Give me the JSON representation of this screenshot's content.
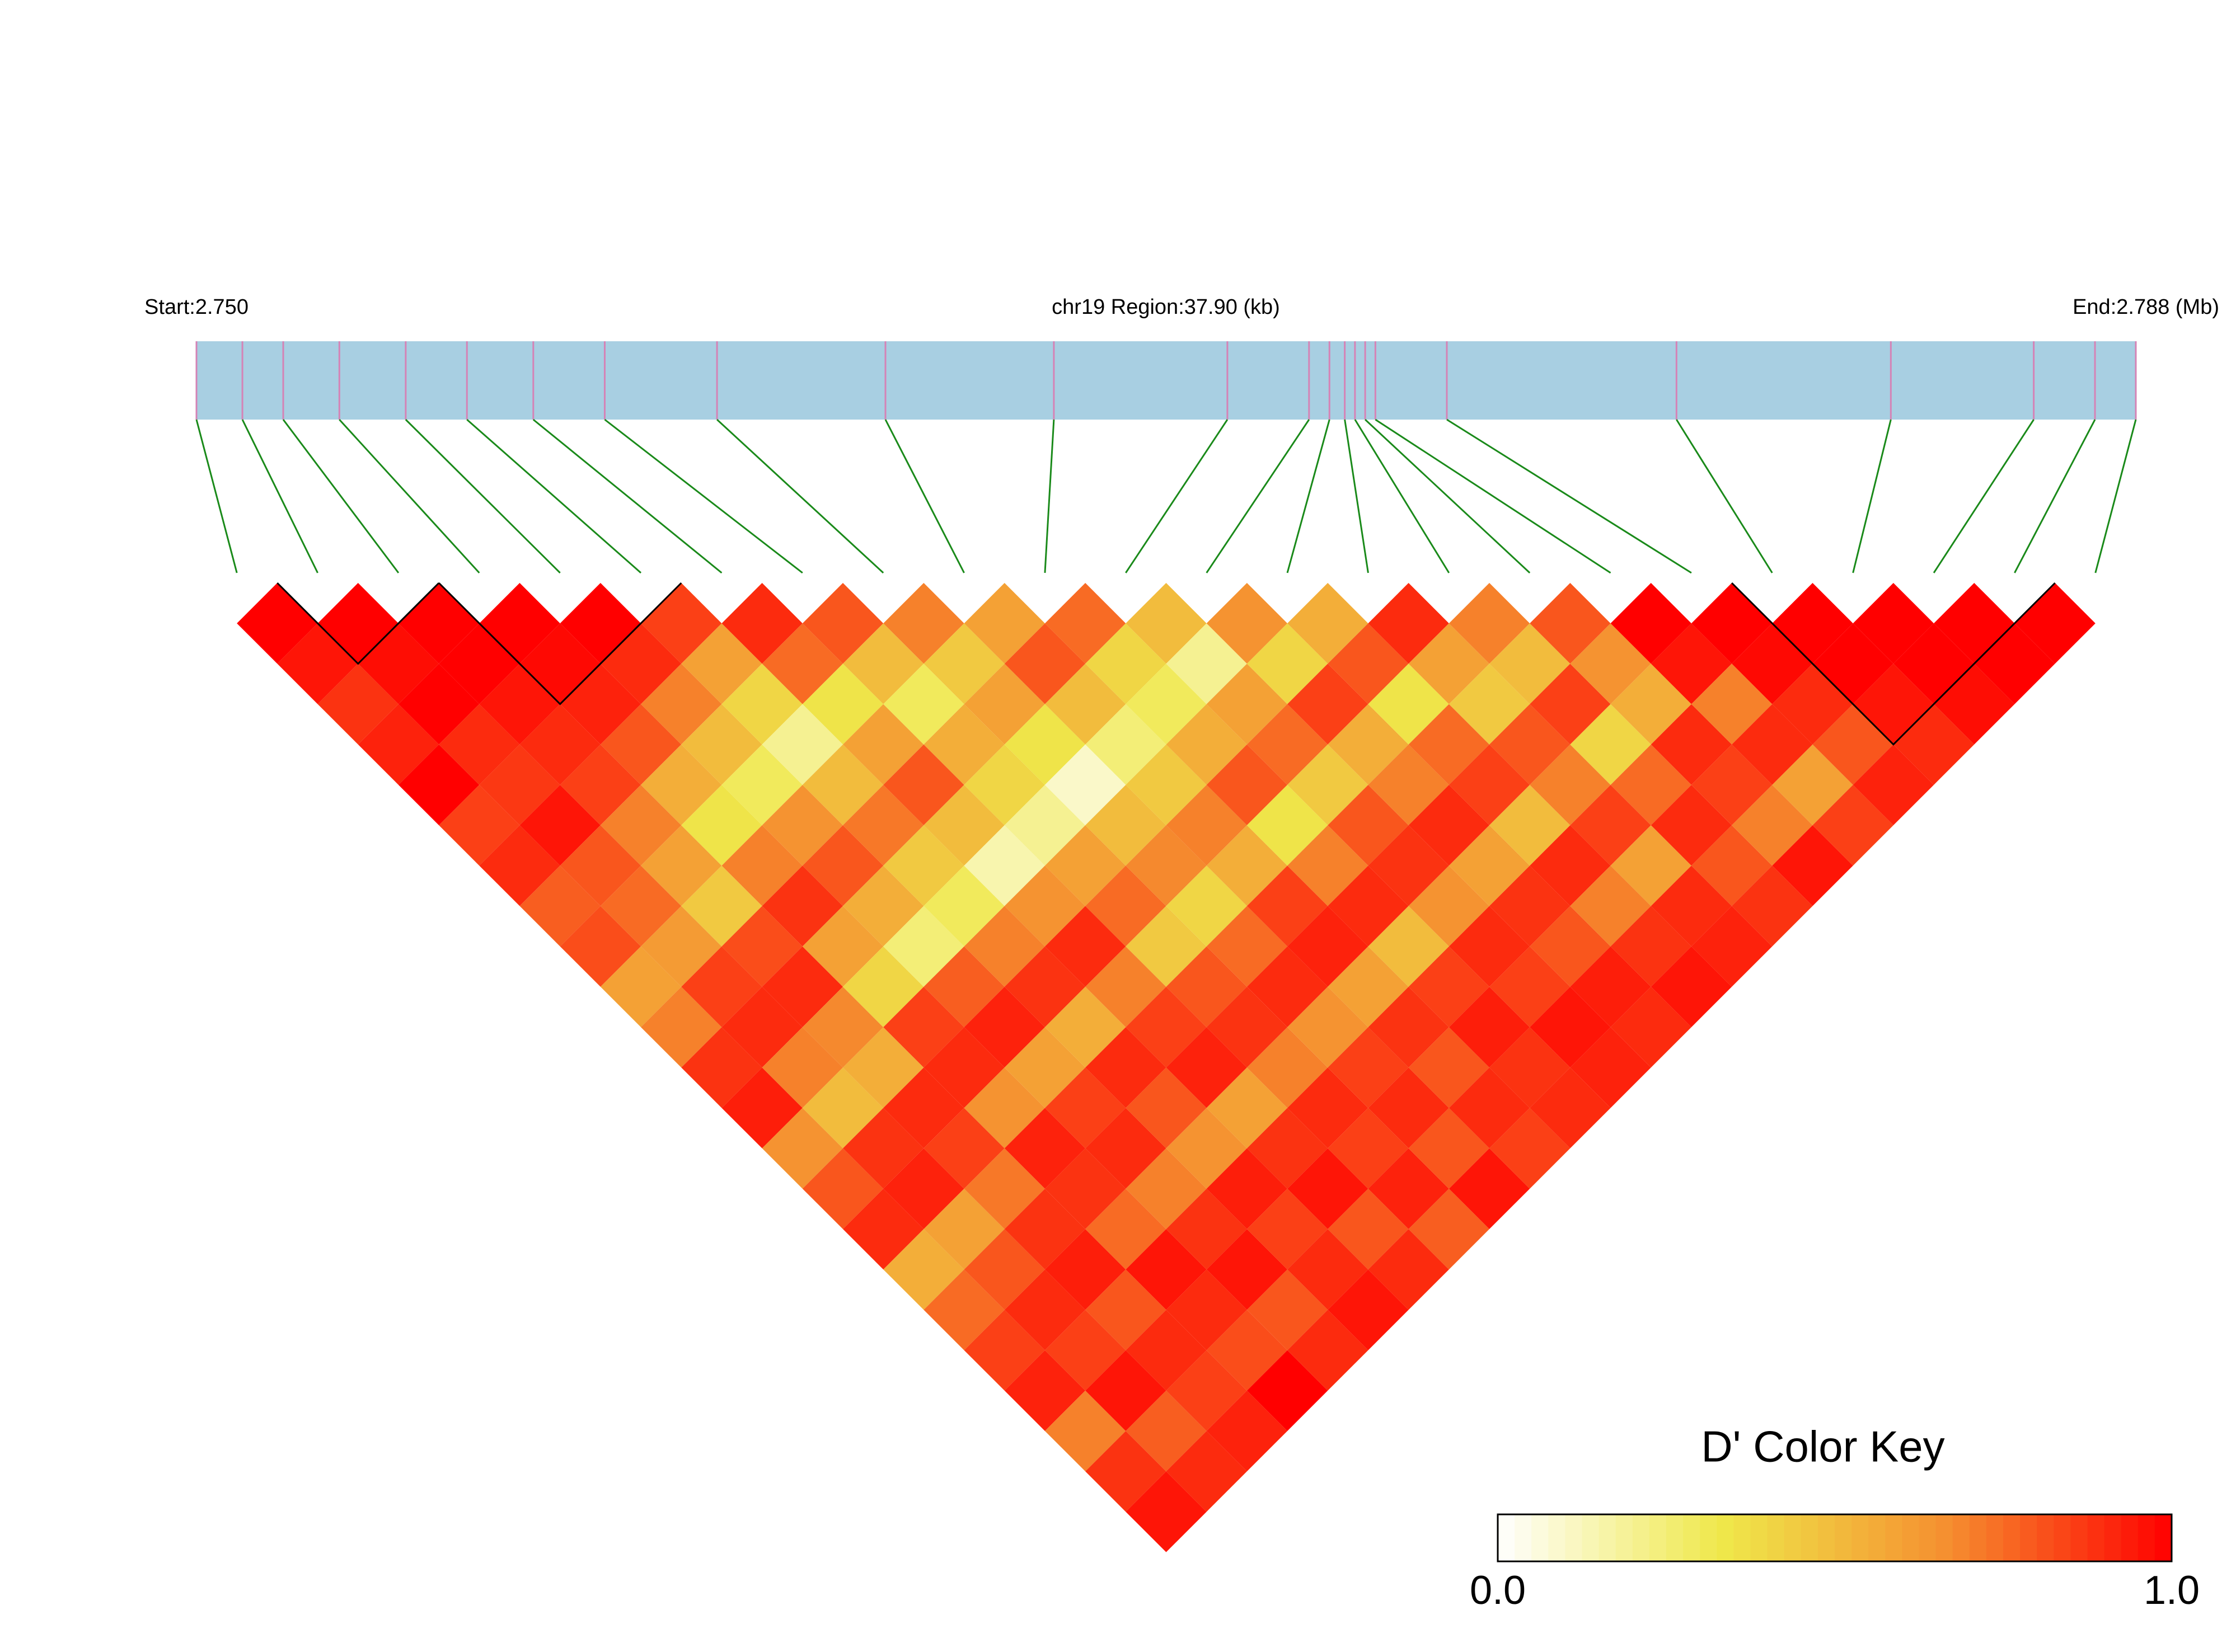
{
  "chart_data": {
    "type": "ld_heatmap",
    "start_label": "Start:2.750",
    "region_label": "chr19 Region:37.90 (kb)",
    "end_label": "End:2.788 (Mb)",
    "xlim": [
      2.75,
      2.788
    ],
    "positions": [
      2.75,
      2.7509,
      2.7517,
      2.7528,
      2.7541,
      2.7553,
      2.7566,
      2.758,
      2.7602,
      2.7635,
      2.7668,
      2.7702,
      2.7718,
      2.7722,
      2.7725,
      2.7727,
      2.7729,
      2.7731,
      2.7745,
      2.779,
      2.7832,
      2.786,
      2.7872,
      2.788
    ],
    "values": [
      [
        1,
        0.95,
        0.88,
        0.92,
        1,
        0.85,
        0.9,
        0.78,
        0.82,
        0.6,
        0.7,
        0.88,
        0.93,
        0.65,
        0.8,
        0.9,
        0.55,
        0.75,
        0.85,
        0.92,
        0.7,
        0.88,
        0.95
      ],
      [
        1,
        0.97,
        1,
        0.9,
        0.87,
        0.95,
        0.8,
        0.75,
        0.62,
        0.85,
        0.9,
        0.7,
        0.5,
        0.88,
        0.92,
        0.6,
        0.8,
        0.9,
        0.85,
        0.95,
        0.78,
        0.9
      ],
      [
        1,
        1,
        0.95,
        0.9,
        0.85,
        0.7,
        0.6,
        0.45,
        0.82,
        0.9,
        0.68,
        0.55,
        0.9,
        0.85,
        0.72,
        0.88,
        0.93,
        0.8,
        0.9,
        0.85,
        0.92
      ],
      [
        1,
        0.98,
        0.92,
        0.8,
        0.55,
        0.35,
        0.7,
        0.88,
        0.6,
        0.4,
        0.85,
        0.9,
        0.65,
        0.92,
        0.88,
        0.75,
        0.95,
        0.9,
        0.82,
        1
      ],
      [
        1,
        0.9,
        0.7,
        0.5,
        0.3,
        0.65,
        0.8,
        0.55,
        0.25,
        0.78,
        0.92,
        0.6,
        0.85,
        0.9,
        0.7,
        0.88,
        0.95,
        0.8,
        0.9
      ],
      [
        0.85,
        0.6,
        0.4,
        0.2,
        0.5,
        0.72,
        0.45,
        0.3,
        0.7,
        0.88,
        0.55,
        0.9,
        0.8,
        0.65,
        0.93,
        0.85,
        0.9,
        0.95
      ],
      [
        0.9,
        0.75,
        0.35,
        0.6,
        0.8,
        0.5,
        0.15,
        0.65,
        0.9,
        0.7,
        0.85,
        0.92,
        0.6,
        0.88,
        0.95,
        0.8,
        0.9
      ],
      [
        0.8,
        0.5,
        0.3,
        0.55,
        0.4,
        0.2,
        0.6,
        0.75,
        0.45,
        0.8,
        0.88,
        0.7,
        0.9,
        0.85,
        0.92,
        0.78
      ],
      [
        0.7,
        0.45,
        0.6,
        0.35,
        0.1,
        0.5,
        0.68,
        0.4,
        0.75,
        0.9,
        0.65,
        0.85,
        0.9,
        0.8,
        0.95
      ],
      [
        0.6,
        0.8,
        0.5,
        0.25,
        0.45,
        0.7,
        0.55,
        0.85,
        0.92,
        0.6,
        0.88,
        0.8,
        0.9,
        0.85
      ],
      [
        0.75,
        0.4,
        0.3,
        0.55,
        0.8,
        0.35,
        0.7,
        0.9,
        0.5,
        0.85,
        0.93,
        0.88,
        0.9
      ],
      [
        0.5,
        0.2,
        0.6,
        0.75,
        0.45,
        0.8,
        0.88,
        0.65,
        0.9,
        0.85,
        0.95,
        0.92
      ],
      [
        0.65,
        0.4,
        0.85,
        0.55,
        0.7,
        0.9,
        0.6,
        0.88,
        0.8,
        0.93,
        0.9
      ],
      [
        0.55,
        0.8,
        0.35,
        0.75,
        0.85,
        0.5,
        0.9,
        0.7,
        0.88,
        0.95
      ],
      [
        0.9,
        0.6,
        0.45,
        0.8,
        0.7,
        0.85,
        0.6,
        0.9,
        0.92
      ],
      [
        0.7,
        0.5,
        0.85,
        0.4,
        0.75,
        0.9,
        0.8,
        0.88
      ],
      [
        0.8,
        0.65,
        0.55,
        0.9,
        0.85,
        0.7,
        0.95
      ],
      [
        1,
        0.95,
        0.7,
        0.9,
        0.6,
        0.85
      ],
      [
        1,
        0.98,
        0.9,
        0.8,
        0.92
      ],
      [
        1,
        1,
        0.95,
        0.9
      ],
      [
        1,
        1,
        0.97
      ],
      [
        1,
        1
      ],
      [
        1
      ]
    ],
    "blocks": [
      [
        1,
        3
      ],
      [
        3,
        6
      ],
      [
        19,
        23
      ]
    ],
    "colors": [
      "#ffffff",
      "#efe84a",
      "#f58f30",
      "#ff0000"
    ],
    "colorkey_title": "D' Color Key",
    "colorkey_lim": [
      0,
      1
    ],
    "colorkey_ticks": [
      {
        "value": 0,
        "label": "0.0"
      },
      {
        "value": 1,
        "label": "1.0"
      }
    ]
  }
}
